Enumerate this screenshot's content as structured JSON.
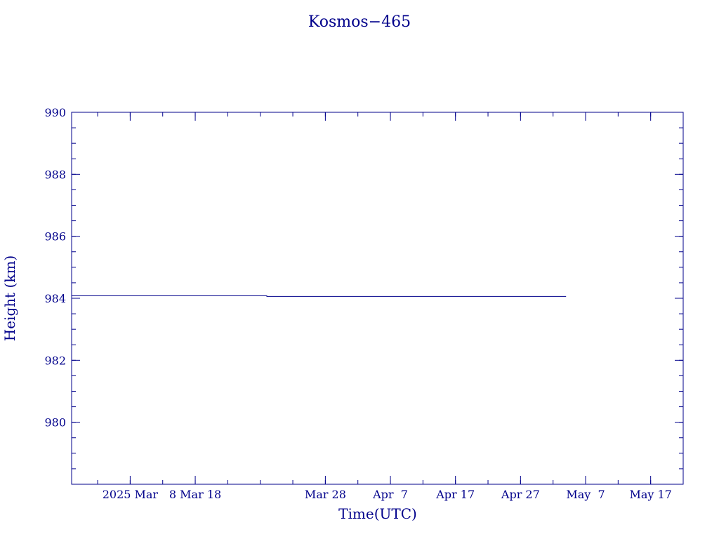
{
  "chart_data": {
    "type": "line",
    "title": "Kosmos−465",
    "xlabel": "Time(UTC)",
    "ylabel": "Height (km)",
    "x_ticks": [
      {
        "date": "2025-02-26",
        "label": "2025 Mar"
      },
      {
        "date": "2025-03-08",
        "label": "8 Mar 18"
      },
      {
        "date": "2025-03-28",
        "label": "Mar 28"
      },
      {
        "date": "2025-04-07",
        "label": "Apr  7"
      },
      {
        "date": "2025-04-17",
        "label": "Apr 17"
      },
      {
        "date": "2025-04-27",
        "label": "Apr 27"
      },
      {
        "date": "2025-05-07",
        "label": "May  7"
      },
      {
        "date": "2025-05-17",
        "label": "May 17"
      }
    ],
    "x_minor_tick_interval_days": 5,
    "xlim": [
      "2025-02-17",
      "2025-05-22"
    ],
    "ylim": [
      978,
      990
    ],
    "y_ticks": [
      980,
      982,
      984,
      986,
      988,
      990
    ],
    "y_minor_tick_interval": 0.5,
    "grid": false,
    "series": [
      {
        "color": "#00008b",
        "points": [
          {
            "x": "2025-02-17",
            "y": 984.08
          },
          {
            "x": "2025-03-19",
            "y": 984.08
          },
          {
            "x": "2025-03-19",
            "y": 984.06
          },
          {
            "x": "2025-05-04",
            "y": 984.06
          }
        ]
      }
    ]
  }
}
